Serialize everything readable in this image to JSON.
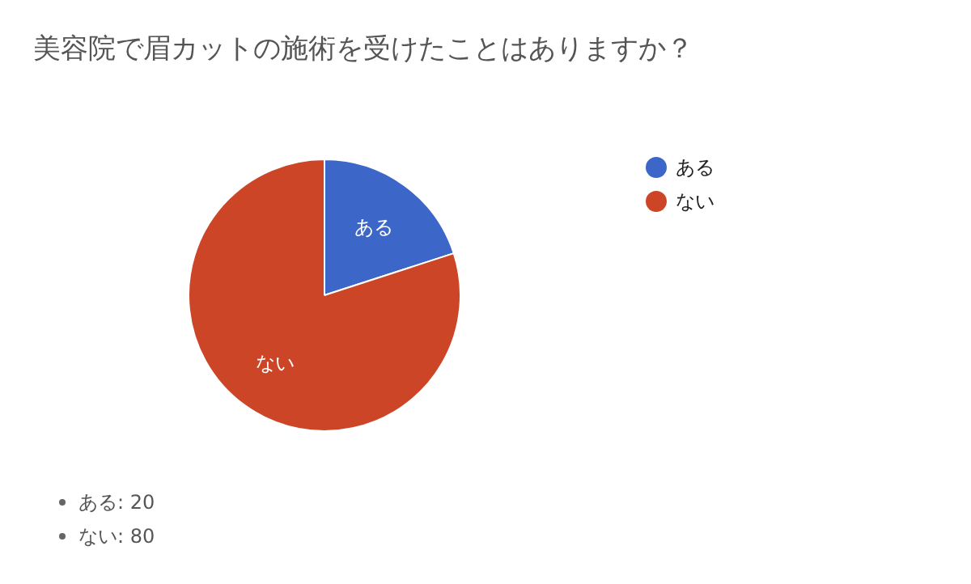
{
  "chart_data": {
    "type": "pie",
    "title": "美容院で眉カットの施術を受けたことはありますか？",
    "categories": [
      "ある",
      "ない"
    ],
    "values": [
      20,
      80
    ],
    "colors": [
      "#3c67c9",
      "#cc4527"
    ],
    "legend": "top right",
    "annotations": [
      "ある: 20",
      "ない: 80"
    ]
  }
}
